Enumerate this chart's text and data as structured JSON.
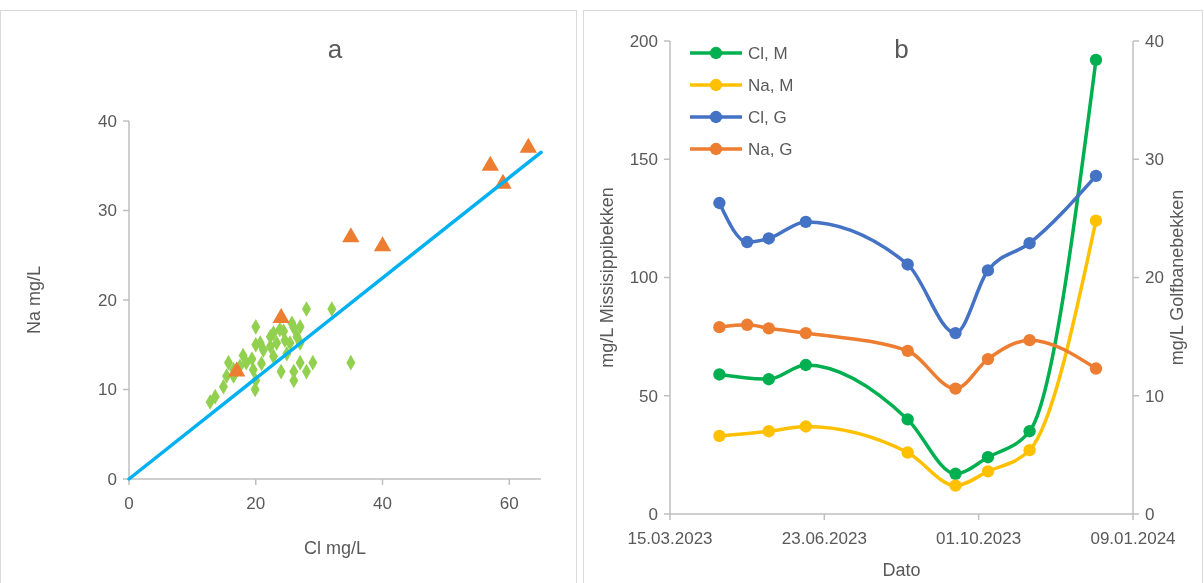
{
  "chart_data": [
    {
      "type": "scatter",
      "title": "a",
      "xlabel": "Cl mg/L",
      "ylabel": "Na mg/L",
      "xlim": [
        0,
        65
      ],
      "ylim": [
        0,
        40
      ],
      "xticks": [
        0,
        20,
        40,
        60
      ],
      "yticks": [
        0,
        10,
        20,
        30,
        40
      ],
      "legend": false,
      "series": [
        {
          "marker": "diamond",
          "color": "#92d050",
          "x": [
            20,
            28,
            32,
            35,
            15.7,
            12.8,
            13.6,
            15.4,
            19.9,
            20,
            26,
            27,
            29,
            28,
            24,
            26,
            18,
            18.5,
            20,
            21.2,
            22.3,
            23.3,
            24.4,
            25.7,
            27,
            26.5,
            24.9,
            22.8,
            20.9,
            19.6,
            16.5,
            14.9,
            16.5,
            27,
            23.8,
            22.3,
            20.7,
            22.8,
            24.6,
            19.4,
            17.5,
            25.4,
            26
          ],
          "values": [
            17,
            19,
            19,
            13,
            13,
            8.6,
            9.2,
            11.5,
            10,
            11,
            11,
            13,
            13,
            12,
            12,
            12,
            13.8,
            13,
            15,
            14.4,
            15.9,
            15.2,
            16.5,
            17.4,
            17,
            15.9,
            14,
            13.7,
            12.9,
            12.2,
            12.2,
            10.3,
            11.5,
            15.2,
            16.7,
            14.8,
            15.2,
            16.3,
            15.5,
            13.4,
            12.6,
            15.2,
            16.9
          ]
        },
        {
          "marker": "triangle",
          "color": "#ed7d31",
          "x": [
            17,
            24,
            35,
            40,
            57,
            59,
            63
          ],
          "values": [
            12,
            18,
            27,
            26,
            35,
            33,
            37
          ]
        },
        {
          "type": "line",
          "marker": "none",
          "color": "#00b0f0",
          "x": [
            0,
            65
          ],
          "values": [
            0,
            36.5
          ]
        }
      ]
    },
    {
      "type": "line",
      "title": "b",
      "xlabel": "Dato",
      "ylabel": "mg/L Missisippibekken",
      "y2label": "mg/L Golfbanebekken",
      "xlim": [
        "2023-03-15",
        "2024-01-09"
      ],
      "xticks": [
        {
          "value": "2023-03-15",
          "label": "15.03.2023"
        },
        {
          "value": "2023-06-23",
          "label": "23.06.2023"
        },
        {
          "value": "2023-10-01",
          "label": "01.10.2023"
        },
        {
          "value": "2024-01-09",
          "label": "09.01.2024"
        }
      ],
      "ylim": [
        0,
        200
      ],
      "yticks": [
        0,
        50,
        100,
        150,
        200
      ],
      "y2lim": [
        0,
        40
      ],
      "y2ticks": [
        0,
        10,
        20,
        30,
        40
      ],
      "legend": "top left",
      "marker": "circle",
      "series": [
        {
          "name": "Cl, M",
          "color": "#00b050",
          "x": [
            "2023-04-16",
            "2023-05-18",
            "2023-06-11",
            "2023-08-16",
            "2023-09-16",
            "2023-10-07",
            "2023-11-03",
            "2023-12-16"
          ],
          "values": [
            59,
            57,
            63,
            40,
            17,
            24,
            35,
            192
          ]
        },
        {
          "name": "Na, M",
          "color": "#ffc000",
          "x": [
            "2023-04-16",
            "2023-05-18",
            "2023-06-11",
            "2023-08-16",
            "2023-09-16",
            "2023-10-07",
            "2023-11-03",
            "2023-12-16"
          ],
          "values": [
            33,
            35,
            37,
            26,
            12,
            18,
            27,
            124
          ]
        },
        {
          "name": "Cl, G",
          "color": "#4472c4",
          "axis": "y2",
          "x": [
            "2023-04-16",
            "2023-05-04",
            "2023-05-18",
            "2023-06-11",
            "2023-08-16",
            "2023-09-16",
            "2023-10-07",
            "2023-11-03",
            "2023-12-16"
          ],
          "values": [
            26.3,
            23,
            23.3,
            24.7,
            21.1,
            15.3,
            20.6,
            22.9,
            28.6
          ]
        },
        {
          "name": "Na, G",
          "color": "#ed7d31",
          "axis": "y2",
          "x": [
            "2023-04-16",
            "2023-05-04",
            "2023-05-18",
            "2023-06-11",
            "2023-08-16",
            "2023-09-16",
            "2023-10-07",
            "2023-11-03",
            "2023-12-16"
          ],
          "values": [
            15.8,
            16,
            15.7,
            15.3,
            13.8,
            10.6,
            13.1,
            14.7,
            12.3
          ]
        }
      ]
    }
  ]
}
